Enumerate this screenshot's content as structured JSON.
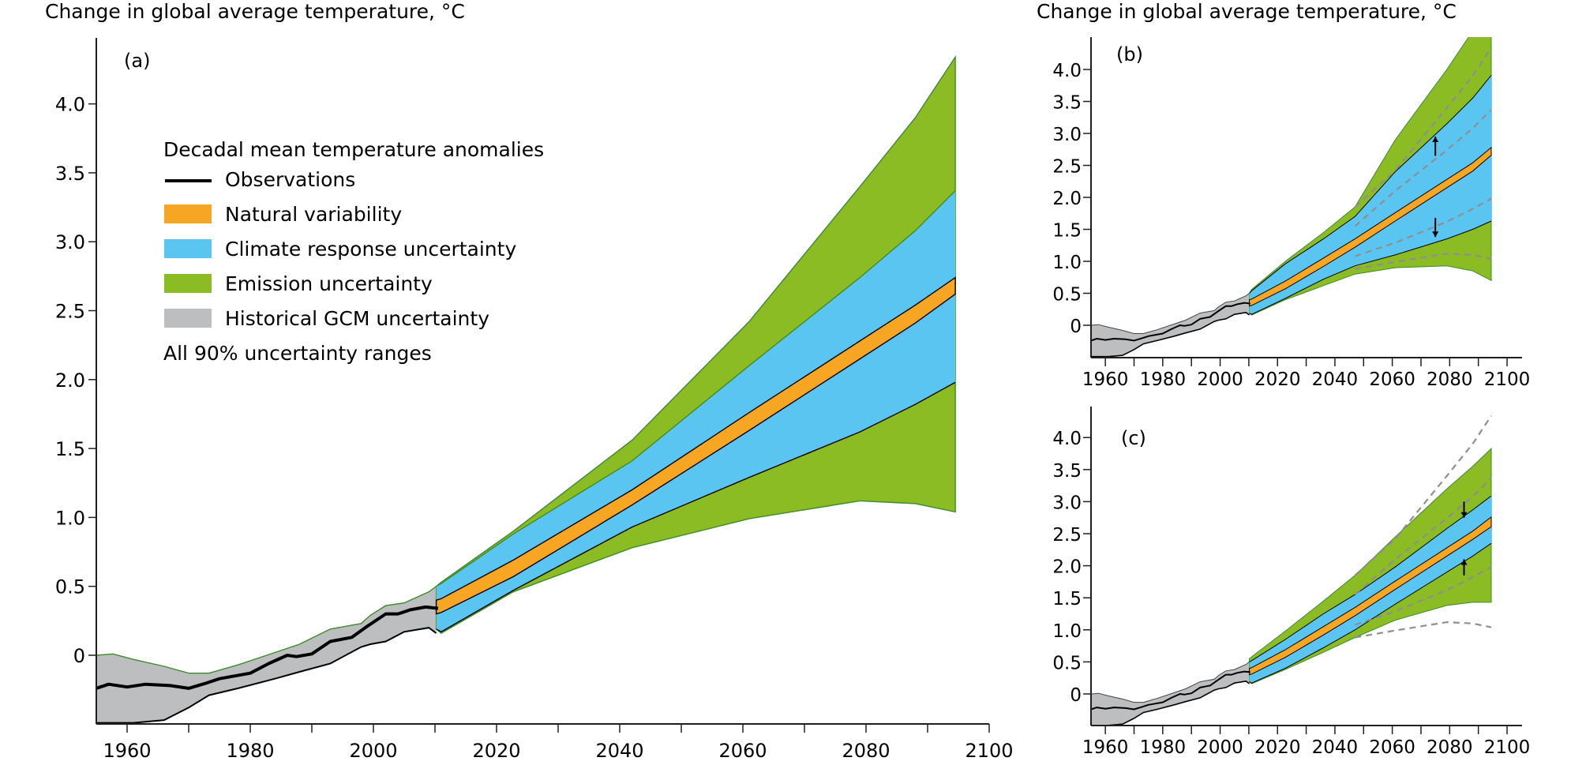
{
  "chart_data": [
    {
      "panel": "a",
      "type": "area",
      "panel_label": "(a)",
      "title": "Change in global average temperature, °C",
      "xlabel": "",
      "ylabel": "Change in global average temperature, °C",
      "xlim": [
        1955,
        2105
      ],
      "ylim": [
        -0.5,
        4.4
      ],
      "x_ticks_major": [
        1960,
        1980,
        2000,
        2020,
        2040,
        2060,
        2080,
        2100
      ],
      "x_tick_labels": [
        "1960",
        "1980",
        "2000",
        "2020",
        "2040",
        "2060",
        "2080",
        "2100"
      ],
      "x_ticks_minor": [
        1970,
        1990,
        2010,
        2030,
        2050,
        2070,
        2090
      ],
      "y_ticks": [
        0,
        0.5,
        1.0,
        1.5,
        2.0,
        2.5,
        3.0,
        3.5,
        4.0
      ],
      "y_tick_labels": [
        "0",
        "0.5",
        "1.0",
        "1.5",
        "2.0",
        "2.5",
        "3.0",
        "3.5",
        "4.0"
      ],
      "grid": false,
      "legend": {
        "position": "top-left",
        "title": "Decadal mean temperature anomalies",
        "entries": [
          {
            "label": "Observations",
            "kind": "line",
            "color": "#000000"
          },
          {
            "label": "Natural variability",
            "kind": "patch",
            "color": "#F6A623"
          },
          {
            "label": "Climate response uncertainty",
            "kind": "patch",
            "color": "#5BC5F1"
          },
          {
            "label": "Emission uncertainty",
            "kind": "patch",
            "color": "#8BBC24"
          },
          {
            "label": "Historical GCM uncertainty",
            "kind": "patch",
            "color": "#BCBEC0"
          }
        ],
        "footer": "All 90% uncertainty ranges"
      },
      "observations": {
        "x": [
          1955,
          1957,
          1960,
          1963,
          1967,
          1970,
          1973,
          1975,
          1977.5,
          1980,
          1983,
          1986,
          1987.5,
          1990,
          1993,
          1996.5,
          1999,
          2002,
          2004,
          2006,
          2008.5,
          2010.5
        ],
        "y": [
          -0.24,
          -0.21,
          -0.23,
          -0.21,
          -0.22,
          -0.24,
          -0.2,
          -0.17,
          -0.15,
          -0.13,
          -0.06,
          0.0,
          -0.01,
          0.01,
          0.1,
          0.13,
          0.21,
          0.3,
          0.3,
          0.33,
          0.35,
          0.34
        ]
      },
      "historical_gcm_band": {
        "x": [
          1955,
          1957.7,
          1961,
          1966,
          1970,
          1973.3,
          1978,
          1984,
          1988,
          1993,
          1998,
          1999.5,
          2002,
          2005,
          2009,
          2010.2
        ],
        "upper": [
          0.0,
          0.01,
          -0.03,
          -0.08,
          -0.13,
          -0.13,
          -0.07,
          0.02,
          0.08,
          0.19,
          0.23,
          0.29,
          0.36,
          0.38,
          0.46,
          0.5
        ],
        "lower": [
          -0.49,
          -0.49,
          -0.49,
          -0.47,
          -0.38,
          -0.29,
          -0.24,
          -0.17,
          -0.12,
          -0.06,
          0.06,
          0.08,
          0.1,
          0.17,
          0.2,
          0.16
        ]
      },
      "projection": {
        "x": [
          2010.2,
          2011,
          2022.7,
          2042,
          2061,
          2079,
          2088,
          2094.5
        ],
        "emission_upper": [
          0.5,
          0.53,
          0.9,
          1.56,
          2.42,
          3.4,
          3.9,
          4.34
        ],
        "climate_upper": [
          0.5,
          0.52,
          0.88,
          1.41,
          2.1,
          2.74,
          3.08,
          3.37
        ],
        "natural_upper": [
          0.4,
          0.41,
          0.69,
          1.2,
          1.76,
          2.28,
          2.54,
          2.74
        ],
        "natural_lower": [
          0.3,
          0.31,
          0.57,
          1.09,
          1.63,
          2.15,
          2.41,
          2.62
        ],
        "climate_lower": [
          0.19,
          0.17,
          0.47,
          0.93,
          1.29,
          1.62,
          1.82,
          1.98
        ],
        "emission_lower": [
          0.19,
          0.16,
          0.46,
          0.78,
          0.99,
          1.12,
          1.1,
          1.04
        ]
      }
    },
    {
      "panel": "b",
      "type": "area",
      "panel_label": "(b)",
      "title": "Change in global average temperature, °C",
      "xlim": [
        1955,
        2105
      ],
      "ylim": [
        -0.5,
        4.4
      ],
      "x_ticks_major": [
        1960,
        1980,
        2000,
        2020,
        2040,
        2060,
        2080,
        2100
      ],
      "x_tick_labels": [
        "1960",
        "1980",
        "2000",
        "2020",
        "2040",
        "2060",
        "2080",
        "2100"
      ],
      "x_ticks_minor": [
        1970,
        1990,
        2010,
        2030,
        2050,
        2070,
        2090
      ],
      "y_ticks": [
        0,
        0.5,
        1.0,
        1.5,
        2.0,
        2.5,
        3.0,
        3.5,
        4.0
      ],
      "y_tick_labels": [
        "0",
        "0.5",
        "1.0",
        "1.5",
        "2.0",
        "2.5",
        "3.0",
        "3.5",
        "4.0"
      ],
      "grid": false,
      "annotations": [
        {
          "kind": "arrow",
          "direction": "up",
          "x": 2075,
          "y_from": 2.65,
          "y_to": 2.95
        },
        {
          "kind": "arrow",
          "direction": "down",
          "x": 2075,
          "y_from": 1.68,
          "y_to": 1.38
        }
      ],
      "projection": {
        "x": [
          2010.2,
          2011,
          2022.7,
          2036,
          2047,
          2061,
          2079,
          2088,
          2094.5
        ],
        "emission_upper": [
          0.5,
          0.56,
          1.0,
          1.45,
          1.85,
          2.9,
          4.0,
          4.6,
          5.1
        ],
        "climate_upper": [
          0.5,
          0.54,
          0.96,
          1.35,
          1.7,
          2.4,
          3.15,
          3.55,
          3.91
        ],
        "natural_upper": [
          0.4,
          0.41,
          0.69,
          1.05,
          1.35,
          1.76,
          2.28,
          2.54,
          2.78
        ],
        "natural_lower": [
          0.3,
          0.31,
          0.57,
          0.92,
          1.22,
          1.63,
          2.15,
          2.41,
          2.66
        ],
        "climate_lower": [
          0.19,
          0.17,
          0.42,
          0.72,
          0.93,
          1.1,
          1.35,
          1.5,
          1.63
        ],
        "emission_lower": [
          0.19,
          0.16,
          0.4,
          0.62,
          0.8,
          0.9,
          0.93,
          0.85,
          0.7
        ]
      },
      "reference_dashed": {
        "note": "Panel (a) band boundaries shown as dashed grey lines",
        "x": [
          2047,
          2061,
          2079,
          2088,
          2094.5
        ],
        "emission_upper": [
          1.85,
          2.42,
          3.4,
          3.9,
          4.34
        ],
        "climate_upper": [
          1.55,
          2.1,
          2.74,
          3.08,
          3.37
        ],
        "climate_lower": [
          1.08,
          1.29,
          1.62,
          1.82,
          1.98
        ],
        "emission_lower": [
          0.88,
          0.99,
          1.12,
          1.1,
          1.04
        ]
      }
    },
    {
      "panel": "c",
      "type": "area",
      "panel_label": "(c)",
      "xlim": [
        1955,
        2105
      ],
      "ylim": [
        -0.5,
        4.4
      ],
      "x_ticks_major": [
        1960,
        1980,
        2000,
        2020,
        2040,
        2060,
        2080,
        2100
      ],
      "x_tick_labels": [
        "1960",
        "1980",
        "2000",
        "2020",
        "2040",
        "2060",
        "2080",
        "2100"
      ],
      "x_ticks_minor": [
        1970,
        1990,
        2010,
        2030,
        2050,
        2070,
        2090
      ],
      "y_ticks": [
        0,
        0.5,
        1.0,
        1.5,
        2.0,
        2.5,
        3.0,
        3.5,
        4.0
      ],
      "y_tick_labels": [
        "0",
        "0.5",
        "1.0",
        "1.5",
        "2.0",
        "2.5",
        "3.0",
        "3.5",
        "4.0"
      ],
      "grid": false,
      "annotations": [
        {
          "kind": "arrow",
          "direction": "down",
          "x": 2085,
          "y_from": 3.0,
          "y_to": 2.75
        },
        {
          "kind": "arrow",
          "direction": "up",
          "x": 2085,
          "y_from": 1.85,
          "y_to": 2.1
        }
      ],
      "projection": {
        "x": [
          2010.2,
          2011,
          2022.7,
          2036,
          2047,
          2061,
          2079,
          2088,
          2094.5
        ],
        "emission_upper": [
          0.55,
          0.58,
          0.98,
          1.45,
          1.85,
          2.45,
          3.2,
          3.55,
          3.83
        ],
        "climate_upper": [
          0.5,
          0.52,
          0.85,
          1.25,
          1.55,
          1.98,
          2.58,
          2.87,
          3.09
        ],
        "natural_upper": [
          0.4,
          0.41,
          0.69,
          1.05,
          1.35,
          1.76,
          2.28,
          2.54,
          2.76
        ],
        "natural_lower": [
          0.3,
          0.31,
          0.57,
          0.92,
          1.22,
          1.63,
          2.15,
          2.41,
          2.61
        ],
        "climate_lower": [
          0.19,
          0.17,
          0.4,
          0.72,
          1.0,
          1.4,
          1.9,
          2.15,
          2.35
        ],
        "emission_lower": [
          0.19,
          0.16,
          0.38,
          0.65,
          0.88,
          1.15,
          1.38,
          1.43,
          1.43
        ]
      },
      "reference_dashed": {
        "note": "Panel (a) band boundaries shown as dashed grey lines",
        "x": [
          2047,
          2061,
          2079,
          2088,
          2094.5
        ],
        "emission_upper": [
          1.85,
          2.42,
          3.4,
          3.9,
          4.34
        ],
        "climate_upper": [
          1.55,
          2.1,
          2.74,
          3.08,
          3.37
        ],
        "climate_lower": [
          1.08,
          1.29,
          1.62,
          1.82,
          1.98
        ],
        "emission_lower": [
          0.88,
          0.99,
          1.12,
          1.1,
          1.04
        ]
      }
    }
  ],
  "colors": {
    "natural": "#F6A623",
    "climate": "#5BC5F1",
    "emission": "#8BBC24",
    "emission_edge": "#3F8A2E",
    "historical": "#BCBEC0",
    "observations": "#000000",
    "dashed": "#8E8E93",
    "axis": "#231F20"
  }
}
